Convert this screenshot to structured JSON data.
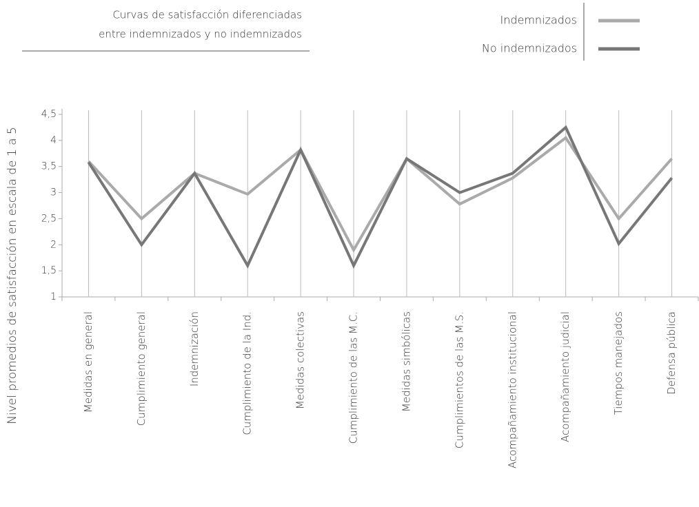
{
  "chart_data": {
    "type": "line",
    "title": [
      "Curvas de satisfacción diferenciadas",
      "entre indemnizados y no indemnizados"
    ],
    "y_label": "Nivel promedios de satisfacción en escala de 1 a 5",
    "categories": [
      "Medidas en general",
      "Cumplimiento general",
      "Indemnización",
      "Cumplimiento de la Ind.",
      "Medidas colectivas",
      "Cumplimiento de las M.C.",
      "Medidas simbólicas",
      "Cumplimientos de las M.S.",
      "Acompañamiento institucional",
      "Acompañamiento judicial",
      "Tiempos manejados",
      "Defensa pública"
    ],
    "series": [
      {
        "name": "Indemnizados",
        "color": "#aaaaaa",
        "values": [
          3.6,
          2.5,
          3.37,
          2.97,
          3.82,
          1.9,
          3.65,
          2.78,
          3.28,
          4.05,
          2.5,
          3.65
        ]
      },
      {
        "name": "No indemnizados",
        "color": "#777777",
        "values": [
          3.58,
          2.0,
          3.37,
          1.6,
          3.82,
          1.6,
          3.65,
          3.0,
          3.37,
          4.25,
          2.02,
          3.28
        ]
      }
    ],
    "ylim": [
      1,
      4.5
    ],
    "yticks": [
      1,
      {
        "value": 1.5,
        "label": "1,5"
      },
      2,
      {
        "value": 2.5,
        "label": "2,5"
      },
      3,
      {
        "value": 3.5,
        "label": "3,5"
      },
      4,
      {
        "value": 4.5,
        "label": "4,5"
      }
    ],
    "grid": true
  }
}
